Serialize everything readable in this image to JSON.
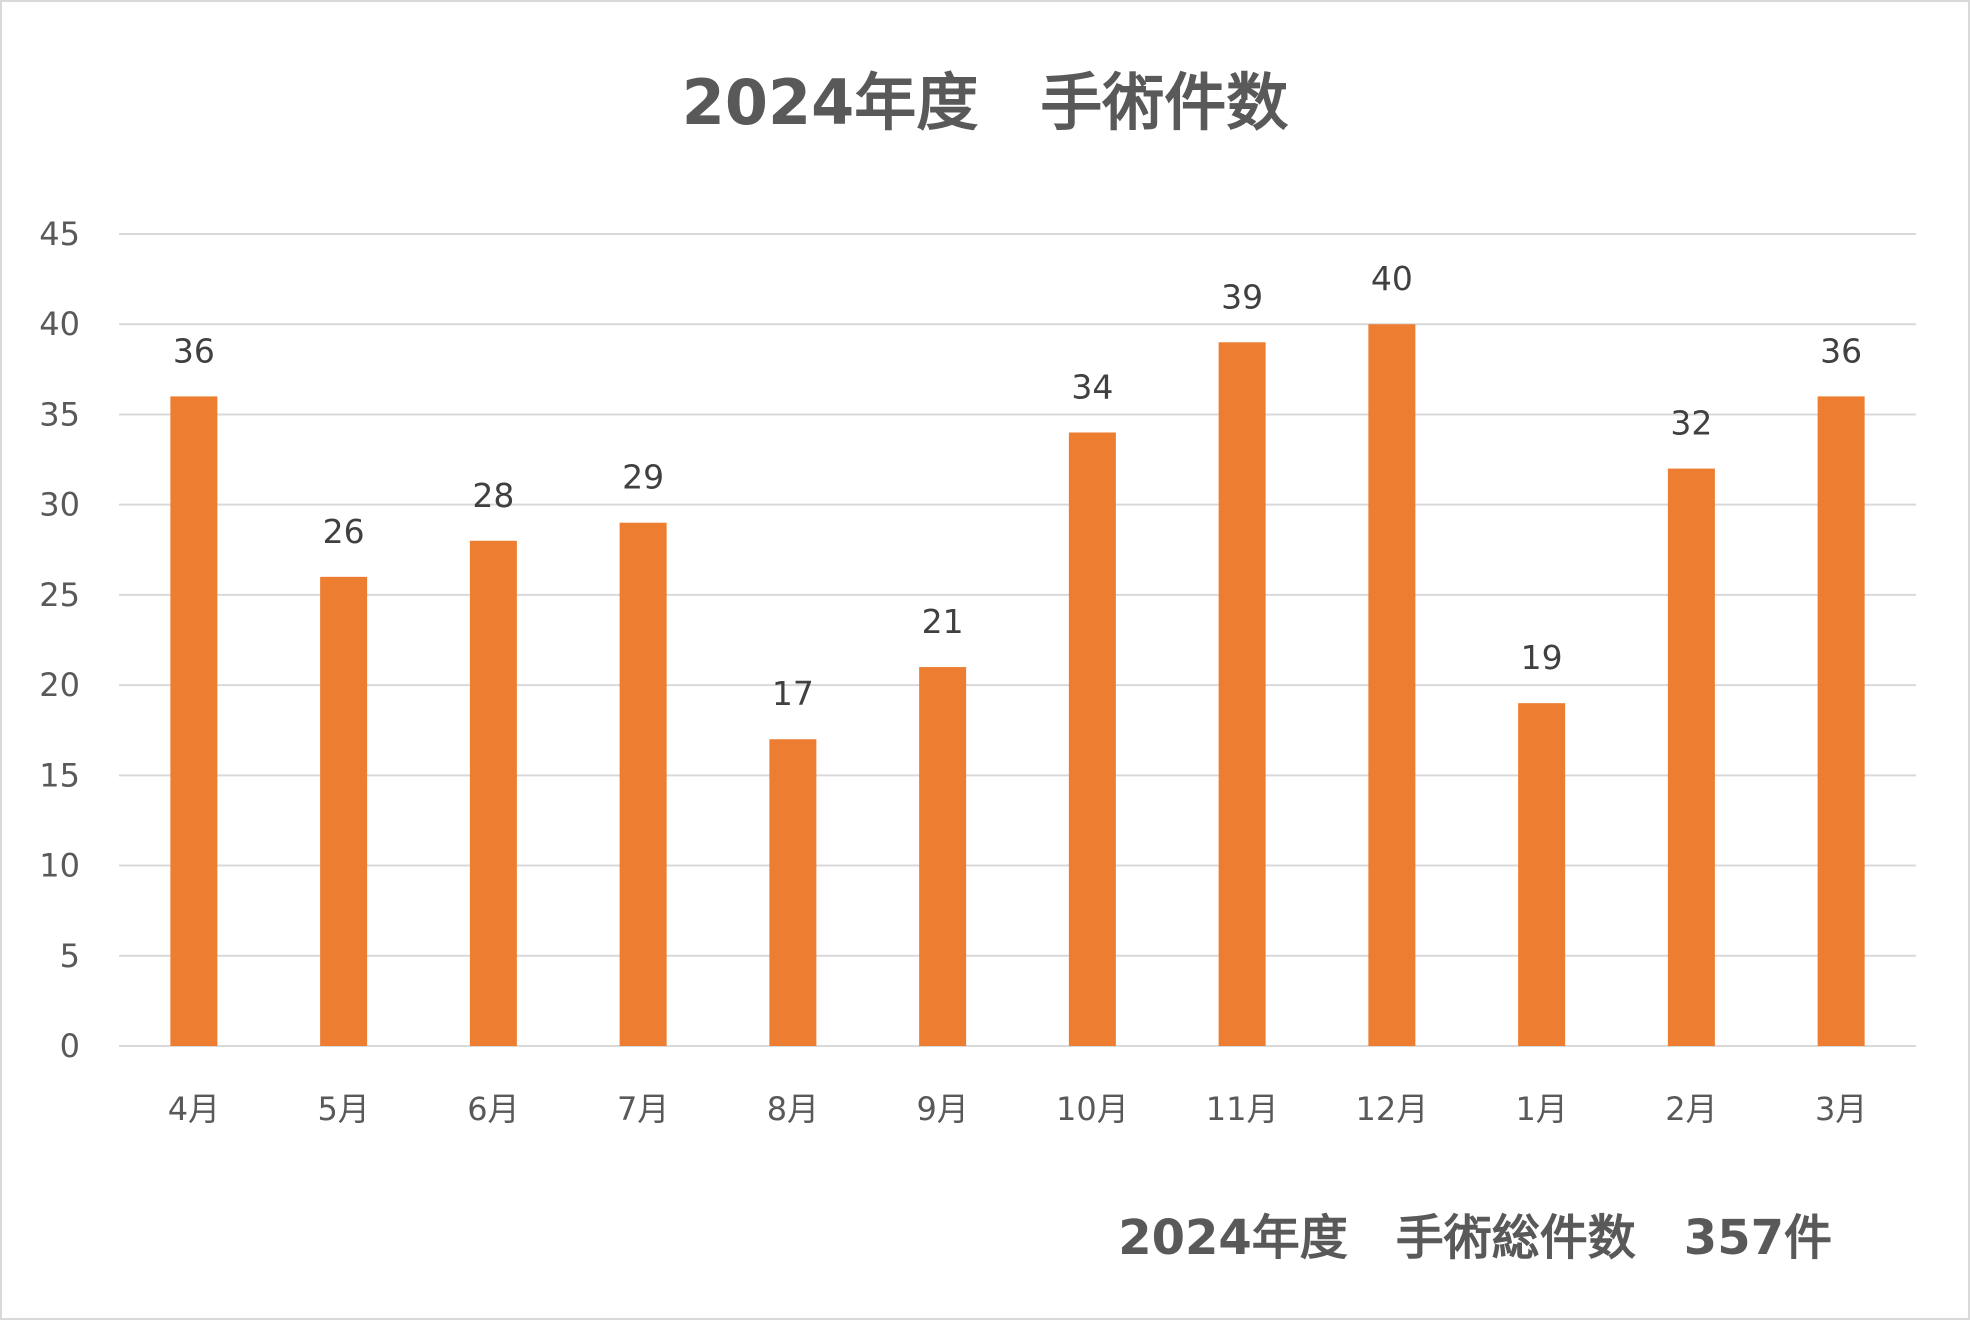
{
  "chart_data": {
    "type": "bar",
    "title": "2024年度　手術件数",
    "summary": "2024年度　手術総件数　357件",
    "categories": [
      "4月",
      "5月",
      "6月",
      "7月",
      "8月",
      "9月",
      "10月",
      "11月",
      "12月",
      "1月",
      "2月",
      "3月"
    ],
    "series": [
      {
        "values": [
          36,
          26,
          28,
          29,
          17,
          21,
          34,
          39,
          40,
          19,
          32,
          36
        ],
        "color": "#ED7D31"
      }
    ],
    "xlabel": "",
    "ylabel": "",
    "ylim": [
      0,
      45
    ],
    "yticks": [
      0,
      5,
      10,
      15,
      20,
      25,
      30,
      35,
      40,
      45
    ],
    "grid": true,
    "legend": "none",
    "data_labels": true
  }
}
